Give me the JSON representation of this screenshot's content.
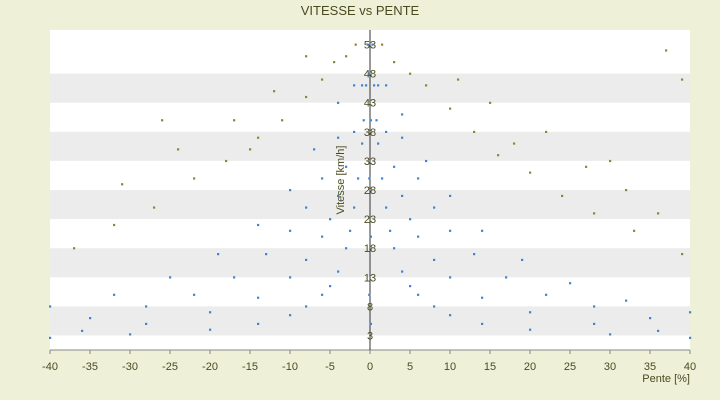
{
  "chart_data": {
    "type": "scatter",
    "title": "VITESSE vs PENTE",
    "xlabel": "Pente [%]",
    "ylabel": "Vitesse [km/h]",
    "xlim": [
      -40,
      40
    ],
    "ylim": [
      0.5,
      55.5
    ],
    "xticks": [
      -40,
      -35,
      -30,
      -25,
      -20,
      -15,
      -10,
      -5,
      0,
      5,
      10,
      15,
      20,
      25,
      30,
      35,
      40
    ],
    "yticks": [
      3,
      8,
      13,
      18,
      23,
      28,
      33,
      38,
      43,
      48,
      53
    ],
    "grid": "horizontal bands",
    "colors": {
      "background": "#eef1d8",
      "band_light": "#ffffff",
      "band_dark": "#ececec",
      "series_blue": "#3c85d0",
      "series_olive": "#8a8a2a",
      "axis": "#4a4a20"
    },
    "series": [
      {
        "color": "blue",
        "points": [
          [
            0.3,
            53
          ],
          [
            0.5,
            46
          ],
          [
            0.8,
            40
          ],
          [
            1.0,
            36
          ],
          [
            1.5,
            30
          ],
          [
            2,
            25
          ],
          [
            2.5,
            21
          ],
          [
            3,
            18
          ],
          [
            4,
            14
          ],
          [
            5,
            11.5
          ],
          [
            6,
            10
          ],
          [
            8,
            8
          ],
          [
            10,
            6.5
          ],
          [
            14,
            5
          ],
          [
            20,
            4
          ],
          [
            30,
            3.2
          ],
          [
            40,
            2.6
          ],
          [
            -0.3,
            53
          ],
          [
            -0.5,
            46
          ],
          [
            -0.8,
            40
          ],
          [
            -1,
            36
          ],
          [
            -1.5,
            30
          ],
          [
            -2,
            25
          ],
          [
            -2.5,
            21
          ],
          [
            -3,
            18
          ],
          [
            -4,
            14
          ],
          [
            -5,
            11.5
          ],
          [
            -6,
            10
          ],
          [
            -8,
            8
          ],
          [
            -10,
            6.5
          ],
          [
            -14,
            5
          ],
          [
            -20,
            4
          ],
          [
            -30,
            3.2
          ],
          [
            -40,
            2.6
          ],
          [
            1,
            46
          ],
          [
            2,
            38
          ],
          [
            3,
            32
          ],
          [
            4,
            27
          ],
          [
            5,
            23
          ],
          [
            6,
            20
          ],
          [
            8,
            16
          ],
          [
            10,
            13
          ],
          [
            14,
            9.5
          ],
          [
            20,
            7
          ],
          [
            28,
            5
          ],
          [
            36,
            3.8
          ],
          [
            -1,
            46
          ],
          [
            -2,
            38
          ],
          [
            -3,
            32
          ],
          [
            -4,
            27
          ],
          [
            -5,
            23
          ],
          [
            -6,
            20
          ],
          [
            -8,
            16
          ],
          [
            -10,
            13
          ],
          [
            -14,
            9.5
          ],
          [
            -20,
            7
          ],
          [
            -28,
            5
          ],
          [
            -36,
            3.8
          ],
          [
            2,
            46
          ],
          [
            4,
            37
          ],
          [
            6,
            30
          ],
          [
            8,
            25
          ],
          [
            10,
            21
          ],
          [
            13,
            17
          ],
          [
            17,
            13
          ],
          [
            22,
            10
          ],
          [
            28,
            8
          ],
          [
            35,
            6
          ],
          [
            -2,
            46
          ],
          [
            -4,
            37
          ],
          [
            -6,
            30
          ],
          [
            -8,
            25
          ],
          [
            -10,
            21
          ],
          [
            -13,
            17
          ],
          [
            -17,
            13
          ],
          [
            -22,
            10
          ],
          [
            -28,
            8
          ],
          [
            -35,
            6
          ],
          [
            4,
            41
          ],
          [
            7,
            33
          ],
          [
            10,
            27
          ],
          [
            14,
            21
          ],
          [
            19,
            16
          ],
          [
            25,
            12
          ],
          [
            32,
            9
          ],
          [
            40,
            7
          ],
          [
            -4,
            43
          ],
          [
            -7,
            35
          ],
          [
            -10,
            28
          ],
          [
            -14,
            22
          ],
          [
            -19,
            17
          ],
          [
            -25,
            13
          ],
          [
            -32,
            10
          ],
          [
            -40,
            8
          ],
          [
            -0.1,
            48
          ],
          [
            -0.1,
            30
          ],
          [
            -0.1,
            10
          ],
          [
            0.1,
            40
          ],
          [
            0.1,
            20
          ],
          [
            0.1,
            5
          ]
        ]
      },
      {
        "color": "olive",
        "points": [
          [
            -1.8,
            53
          ],
          [
            -3,
            51
          ],
          [
            -4.5,
            50
          ],
          [
            -6,
            47
          ],
          [
            -8,
            44
          ],
          [
            -11,
            40
          ],
          [
            -14,
            37
          ],
          [
            -18,
            33
          ],
          [
            -22,
            30
          ],
          [
            -27,
            25
          ],
          [
            -32,
            22
          ],
          [
            -37,
            18
          ],
          [
            1.5,
            53
          ],
          [
            3,
            50
          ],
          [
            5,
            48
          ],
          [
            7,
            46
          ],
          [
            10,
            42
          ],
          [
            13,
            38
          ],
          [
            16,
            34
          ],
          [
            20,
            31
          ],
          [
            24,
            27
          ],
          [
            28,
            24
          ],
          [
            33,
            21
          ],
          [
            39,
            17
          ],
          [
            -8,
            51
          ],
          [
            -12,
            45
          ],
          [
            -17,
            40
          ],
          [
            -24,
            35
          ],
          [
            -31,
            29
          ],
          [
            11,
            47
          ],
          [
            15,
            43
          ],
          [
            22,
            38
          ],
          [
            27,
            32
          ],
          [
            32,
            28
          ],
          [
            36,
            24
          ],
          [
            37,
            52
          ],
          [
            39,
            47
          ],
          [
            -15,
            35
          ],
          [
            18,
            36
          ],
          [
            -26,
            40
          ],
          [
            30,
            33
          ]
        ]
      }
    ]
  }
}
